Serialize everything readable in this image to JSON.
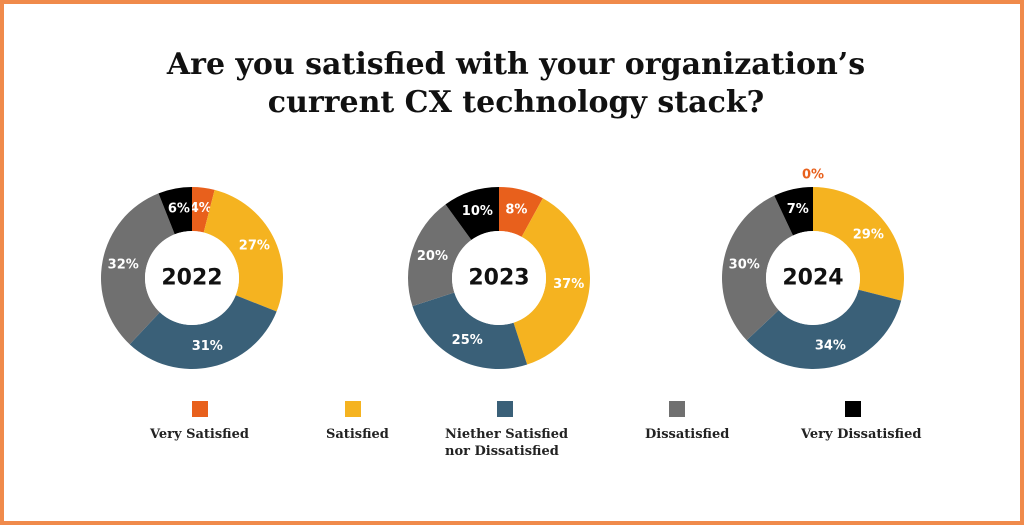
{
  "title_line1": "Are you satisfied with your organization’s",
  "title_line2": "current CX technology stack?",
  "categories": [
    "Very Satisfied",
    "Satisfied",
    "Niether Satisfied nor Dissatisfied",
    "Dissatisfied",
    "Very Dissatisfied"
  ],
  "legend": {
    "very_satisfied": "Very Satisfied",
    "satisfied": "Satisfied",
    "neither_line1": "Niether Satisfied",
    "neither_line2": "nor Dissatisfied",
    "dissatisfied": "Dissatisfied",
    "very_dissatisfied": "Very Dissatisfied"
  },
  "colors": {
    "very_satisfied": "#e8601c",
    "satisfied": "#f5b320",
    "neither": "#3a6078",
    "dissatisfied": "#707070",
    "very_dissatisfied": "#000000",
    "zero_label": "#e8601c"
  },
  "chart_data": [
    {
      "type": "pie",
      "center_label": "2022",
      "categories": [
        "Very Satisfied",
        "Satisfied",
        "Niether Satisfied nor Dissatisfied",
        "Dissatisfied",
        "Very Dissatisfied"
      ],
      "values": [
        4,
        27,
        31,
        32,
        6
      ],
      "labels": [
        "4%",
        "27%",
        "31%",
        "32%",
        "6%"
      ]
    },
    {
      "type": "pie",
      "center_label": "2023",
      "categories": [
        "Very Satisfied",
        "Satisfied",
        "Niether Satisfied nor Dissatisfied",
        "Dissatisfied",
        "Very Dissatisfied"
      ],
      "values": [
        8,
        37,
        25,
        20,
        10
      ],
      "labels": [
        "8%",
        "37%",
        "25%",
        "20%",
        "10%"
      ]
    },
    {
      "type": "pie",
      "center_label": "2024",
      "categories": [
        "Very Satisfied",
        "Satisfied",
        "Niether Satisfied nor Dissatisfied",
        "Dissatisfied",
        "Very Dissatisfied"
      ],
      "values": [
        0,
        29,
        34,
        30,
        7
      ],
      "labels": [
        "0%",
        "29%",
        "34%",
        "30%",
        "7%"
      ]
    }
  ]
}
